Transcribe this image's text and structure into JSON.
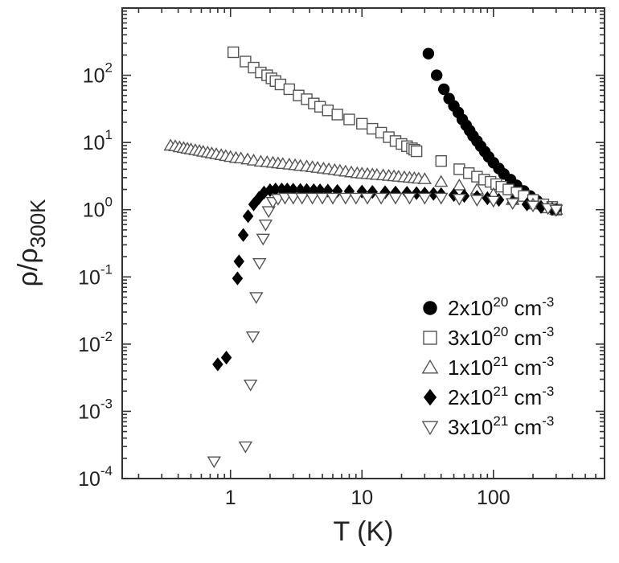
{
  "chart_data": {
    "type": "scatter",
    "x_scale": "log",
    "y_scale": "log",
    "xlim": [
      0.15,
      700
    ],
    "ylim": [
      0.0001,
      1000
    ],
    "xlabel": "T (K)",
    "ylabel": "ρ/ρ",
    "ylabel_sub": "300K",
    "x_ticks": [
      {
        "value": 1,
        "label": "1"
      },
      {
        "value": 10,
        "label": "10"
      },
      {
        "value": 100,
        "label": "100"
      }
    ],
    "y_ticks": [
      {
        "value": 0.0001,
        "mant": "10",
        "exp": "-4"
      },
      {
        "value": 0.001,
        "mant": "10",
        "exp": "-3"
      },
      {
        "value": 0.01,
        "mant": "10",
        "exp": "-2"
      },
      {
        "value": 0.1,
        "mant": "10",
        "exp": "-1"
      },
      {
        "value": 1,
        "mant": "10",
        "exp": "0"
      },
      {
        "value": 10,
        "mant": "10",
        "exp": "1"
      },
      {
        "value": 100,
        "mant": "10",
        "exp": "2"
      }
    ],
    "grid": false,
    "legend_position": "bottom-right",
    "series": [
      {
        "name": "2x10²⁰ cm⁻³",
        "name_base": "2x10",
        "name_exp": "20",
        "name_unit": " cm",
        "name_unit_exp": "-3",
        "marker": "circle",
        "fill": "#000000",
        "stroke": "#000000",
        "x": [
          32,
          37,
          42,
          46,
          50,
          54,
          58,
          62,
          66,
          70,
          75,
          80,
          86,
          92,
          100,
          110,
          120,
          135,
          150,
          170,
          190,
          215,
          240,
          270,
          300
        ],
        "y": [
          210,
          100,
          62,
          45,
          35,
          28,
          22,
          18,
          15,
          12.5,
          10.5,
          8.8,
          7.3,
          6.1,
          5.0,
          4.1,
          3.4,
          2.8,
          2.3,
          1.9,
          1.6,
          1.35,
          1.2,
          1.08,
          1.0
        ]
      },
      {
        "name": "3x10²⁰ cm⁻³",
        "name_base": "3x10",
        "name_exp": "20",
        "name_unit": " cm",
        "name_unit_exp": "-3",
        "marker": "square",
        "fill": "#ffffff",
        "stroke": "#555555",
        "x": [
          1.05,
          1.3,
          1.5,
          1.7,
          1.9,
          2.05,
          2.2,
          2.4,
          2.8,
          3.3,
          3.8,
          4.3,
          4.8,
          5.5,
          6.5,
          8,
          10,
          12,
          14,
          16,
          18,
          20,
          22,
          24,
          25,
          26,
          40,
          55,
          65,
          75,
          85,
          95,
          105,
          115,
          130,
          150,
          170,
          200,
          240,
          280,
          300
        ],
        "y": [
          220,
          160,
          130,
          110,
          100,
          90,
          82,
          73,
          62,
          50,
          44,
          38,
          34,
          30,
          26,
          22,
          19,
          16,
          14,
          12,
          10.5,
          9.5,
          8.8,
          8.2,
          7.8,
          7.4,
          5.3,
          4.0,
          3.5,
          3.1,
          2.8,
          2.6,
          2.4,
          2.2,
          2.0,
          1.8,
          1.6,
          1.4,
          1.2,
          1.1,
          1.0
        ]
      },
      {
        "name": "1x10²¹ cm⁻³",
        "name_base": "1x10",
        "name_exp": "21",
        "name_unit": " cm",
        "name_unit_exp": "-3",
        "marker": "triangle-up",
        "fill": "#ffffff",
        "stroke": "#555555",
        "x": [
          0.35,
          0.38,
          0.41,
          0.44,
          0.47,
          0.5,
          0.54,
          0.58,
          0.62,
          0.67,
          0.72,
          0.78,
          0.85,
          0.92,
          1.0,
          1.1,
          1.2,
          1.35,
          1.5,
          1.7,
          1.9,
          2.1,
          2.3,
          2.5,
          2.8,
          3.1,
          3.4,
          3.8,
          4.2,
          4.6,
          5.1,
          5.6,
          6.2,
          6.8,
          7.5,
          8.3,
          9.2,
          10,
          11,
          12,
          13,
          14.5,
          16,
          17.5,
          19,
          21,
          23,
          25,
          27,
          30,
          40,
          55,
          75,
          100,
          140,
          200,
          260,
          300
        ],
        "y": [
          9.0,
          8.8,
          8.5,
          8.3,
          8.1,
          7.9,
          7.7,
          7.5,
          7.3,
          7.1,
          6.9,
          6.7,
          6.5,
          6.3,
          6.1,
          5.9,
          5.8,
          5.6,
          5.4,
          5.2,
          5.1,
          5.0,
          4.9,
          4.8,
          4.7,
          4.6,
          4.5,
          4.4,
          4.3,
          4.2,
          4.1,
          4.0,
          3.9,
          3.8,
          3.7,
          3.6,
          3.5,
          3.45,
          3.4,
          3.35,
          3.3,
          3.25,
          3.2,
          3.15,
          3.1,
          3.05,
          3.0,
          2.95,
          2.9,
          2.85,
          2.6,
          2.3,
          2.0,
          1.7,
          1.4,
          1.2,
          1.05,
          1.0
        ]
      },
      {
        "name": "2x10²¹ cm⁻³",
        "name_base": "2x10",
        "name_exp": "21",
        "name_unit": " cm",
        "name_unit_exp": "-3",
        "marker": "diamond",
        "fill": "#000000",
        "stroke": "#000000",
        "x": [
          0.8,
          0.93,
          1.13,
          1.16,
          1.25,
          1.36,
          1.5,
          1.65,
          1.8,
          2.0,
          2.2,
          2.45,
          2.7,
          3.0,
          3.4,
          3.8,
          4.3,
          4.8,
          5.5,
          6.5,
          8,
          10,
          12,
          15,
          18,
          22,
          26,
          30,
          35,
          40,
          50,
          60,
          75,
          90,
          110,
          140,
          180,
          230,
          280,
          300
        ],
        "y": [
          0.005,
          0.0063,
          0.095,
          0.17,
          0.42,
          0.8,
          1.2,
          1.5,
          1.8,
          1.95,
          2.0,
          2.0,
          2.0,
          1.98,
          1.97,
          1.96,
          1.95,
          1.94,
          1.92,
          1.9,
          1.88,
          1.86,
          1.84,
          1.82,
          1.8,
          1.78,
          1.76,
          1.74,
          1.72,
          1.7,
          1.65,
          1.6,
          1.55,
          1.48,
          1.4,
          1.3,
          1.2,
          1.1,
          1.03,
          1.0
        ]
      },
      {
        "name": "3x10²¹ cm⁻³",
        "name_base": "3x10",
        "name_exp": "21",
        "name_unit": " cm",
        "name_unit_exp": "-3",
        "marker": "triangle-down",
        "fill": "#ffffff",
        "stroke": "#555555",
        "x": [
          0.75,
          1.3,
          1.42,
          1.48,
          1.57,
          1.66,
          1.77,
          1.85,
          1.95,
          2.1,
          2.3,
          2.6,
          3.0,
          3.5,
          4.2,
          5,
          6,
          7.5,
          9,
          11,
          14,
          18,
          23,
          30,
          40,
          55,
          75,
          100,
          140,
          200,
          260,
          300
        ],
        "y": [
          0.00018,
          0.0003,
          0.0025,
          0.013,
          0.05,
          0.16,
          0.37,
          0.6,
          0.95,
          1.3,
          1.45,
          1.5,
          1.5,
          1.5,
          1.5,
          1.5,
          1.5,
          1.5,
          1.5,
          1.5,
          1.5,
          1.5,
          1.5,
          1.5,
          1.5,
          1.45,
          1.4,
          1.35,
          1.25,
          1.15,
          1.05,
          1.0
        ]
      }
    ]
  }
}
